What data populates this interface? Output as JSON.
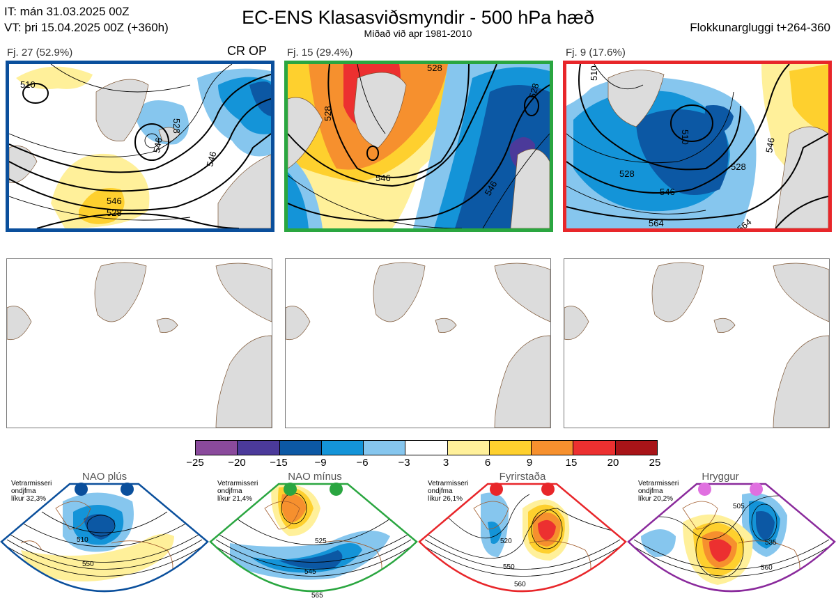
{
  "header": {
    "it_line": "IT: mán 31.03.2025 00Z",
    "vt_line": "VT: þri 15.04.2025 00Z  (+360h)",
    "title": "EC-ENS Klasasviðsmyndir - 500 hPa hæð",
    "subtitle": "Miðað við apr 1981-2010",
    "window": "Flokkunargluggi t+264-360"
  },
  "clusters": [
    {
      "label": "Fj. 27 (52.9%)",
      "frame_color": "#0a4f9c",
      "tag": "CR OP",
      "contour_labels": [
        "510",
        "528",
        "546",
        "528",
        "546",
        "546"
      ]
    },
    {
      "label": "Fj. 15 (29.4%)",
      "frame_color": "#2aa640",
      "tag": "",
      "contour_labels": [
        "528",
        "528",
        "546",
        "528",
        "546"
      ]
    },
    {
      "label": "Fj. 9 (17.6%)",
      "frame_color": "#e8262a",
      "tag": "",
      "contour_labels": [
        "510",
        "528",
        "546",
        "564",
        "546",
        "528",
        "564"
      ]
    }
  ],
  "colorbar": {
    "ticks": [
      "−25",
      "−20",
      "−15",
      "−9",
      "−6",
      "−3",
      "3",
      "6",
      "9",
      "15",
      "20",
      "25"
    ],
    "colors": [
      "#8a4a9c",
      "#4b3a9a",
      "#0c58a4",
      "#1494d8",
      "#86c6ee",
      "#ffffff",
      "#fff09a",
      "#fed02e",
      "#f6902e",
      "#ec3030",
      "#a81418"
    ]
  },
  "regimes": [
    {
      "name": "NAO plús",
      "season": "Vetrarmisseri",
      "category": "ondjfma",
      "prob": "líkur 32,3%",
      "color": "#0a4f9c",
      "labels": [
        "510",
        "550"
      ]
    },
    {
      "name": "NAO mínus",
      "season": "Vetrarmisseri",
      "category": "ondjfma",
      "prob": "líkur 21,4%",
      "color": "#2aa640",
      "labels": [
        "525",
        "545",
        "565"
      ]
    },
    {
      "name": "Fyrirstaða",
      "season": "Vetrarmisseri",
      "category": "ondjfma",
      "prob": "líkur 26,1%",
      "color": "#e8262a",
      "labels": [
        "520",
        "550",
        "560"
      ]
    },
    {
      "name": "Hryggur",
      "season": "Vetrarmisseri",
      "category": "ondjfma",
      "prob": "líkur 20,2%",
      "color": "#e070e0",
      "labels": [
        "505",
        "535",
        "560"
      ]
    }
  ]
}
